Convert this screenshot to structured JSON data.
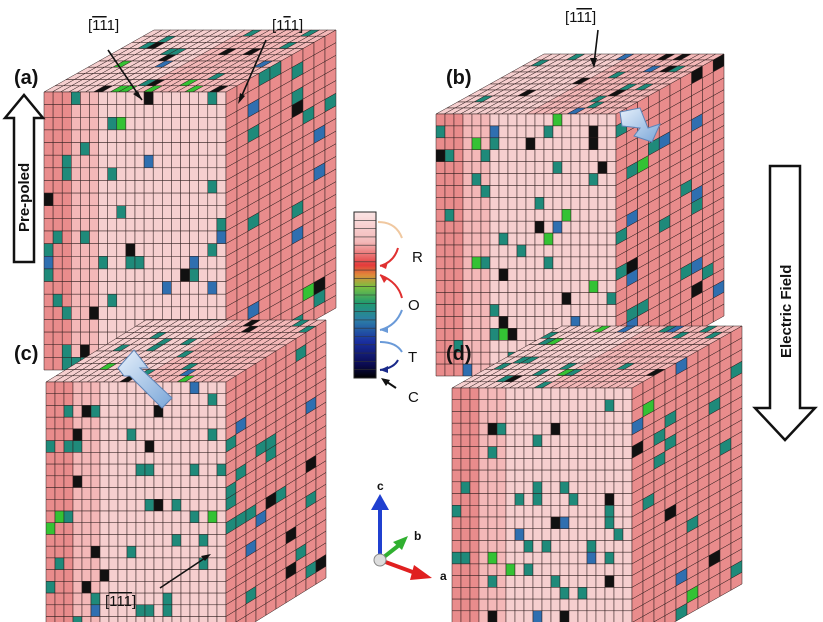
{
  "panels": [
    {
      "id": "a",
      "label": "(a)"
    },
    {
      "id": "b",
      "label": "(b)"
    },
    {
      "id": "c",
      "label": "(c)"
    },
    {
      "id": "d",
      "label": "(d)"
    }
  ],
  "annotations": {
    "dir_a_left": {
      "lead": "[",
      "bar": "11",
      "plain": "1]",
      "display": "[īī1]"
    },
    "dir_a_right": {
      "lead": "[1",
      "bar": "1",
      "plain": "1]",
      "display": "[1ī1]"
    },
    "dir_b_top": {
      "lead": "[1",
      "bar": "11",
      "plain": "]",
      "display": "[1īī]"
    },
    "dir_c_bottom": {
      "lead": "[",
      "bar": "111",
      "plain": "]",
      "display": "[ī1ī]"
    }
  },
  "side_labels": {
    "left": "Pre-poled",
    "right": "Electric Field"
  },
  "legend": {
    "phases": [
      {
        "key": "R",
        "label": "R",
        "arrow_color": "#f0c8a0"
      },
      {
        "key": "O",
        "label": "O",
        "arrow_color": "#e03030"
      },
      {
        "key": "T",
        "label": "T",
        "arrow_color": "#6a9ad8"
      },
      {
        "key": "C",
        "label": "C",
        "arrow_color": "#222222"
      }
    ],
    "colors": [
      "#f3c8c8",
      "#f08c8c",
      "#e02020",
      "#f0d040",
      "#40c040",
      "#208070",
      "#2050a0",
      "#101060",
      "#000000"
    ]
  },
  "axes": {
    "a": "a",
    "b": "b",
    "c": "c",
    "colors": {
      "a": "#e02020",
      "b": "#30b030",
      "c": "#2040d0"
    }
  },
  "palette": {
    "pink": "#f4b8b8",
    "light_pink": "#f6cfcf",
    "salmon": "#e98c8c",
    "teal": "#1f8a7a",
    "blue": "#2f6fb0",
    "dark": "#111111",
    "green": "#34c234",
    "grid": "#2b1b1b"
  }
}
